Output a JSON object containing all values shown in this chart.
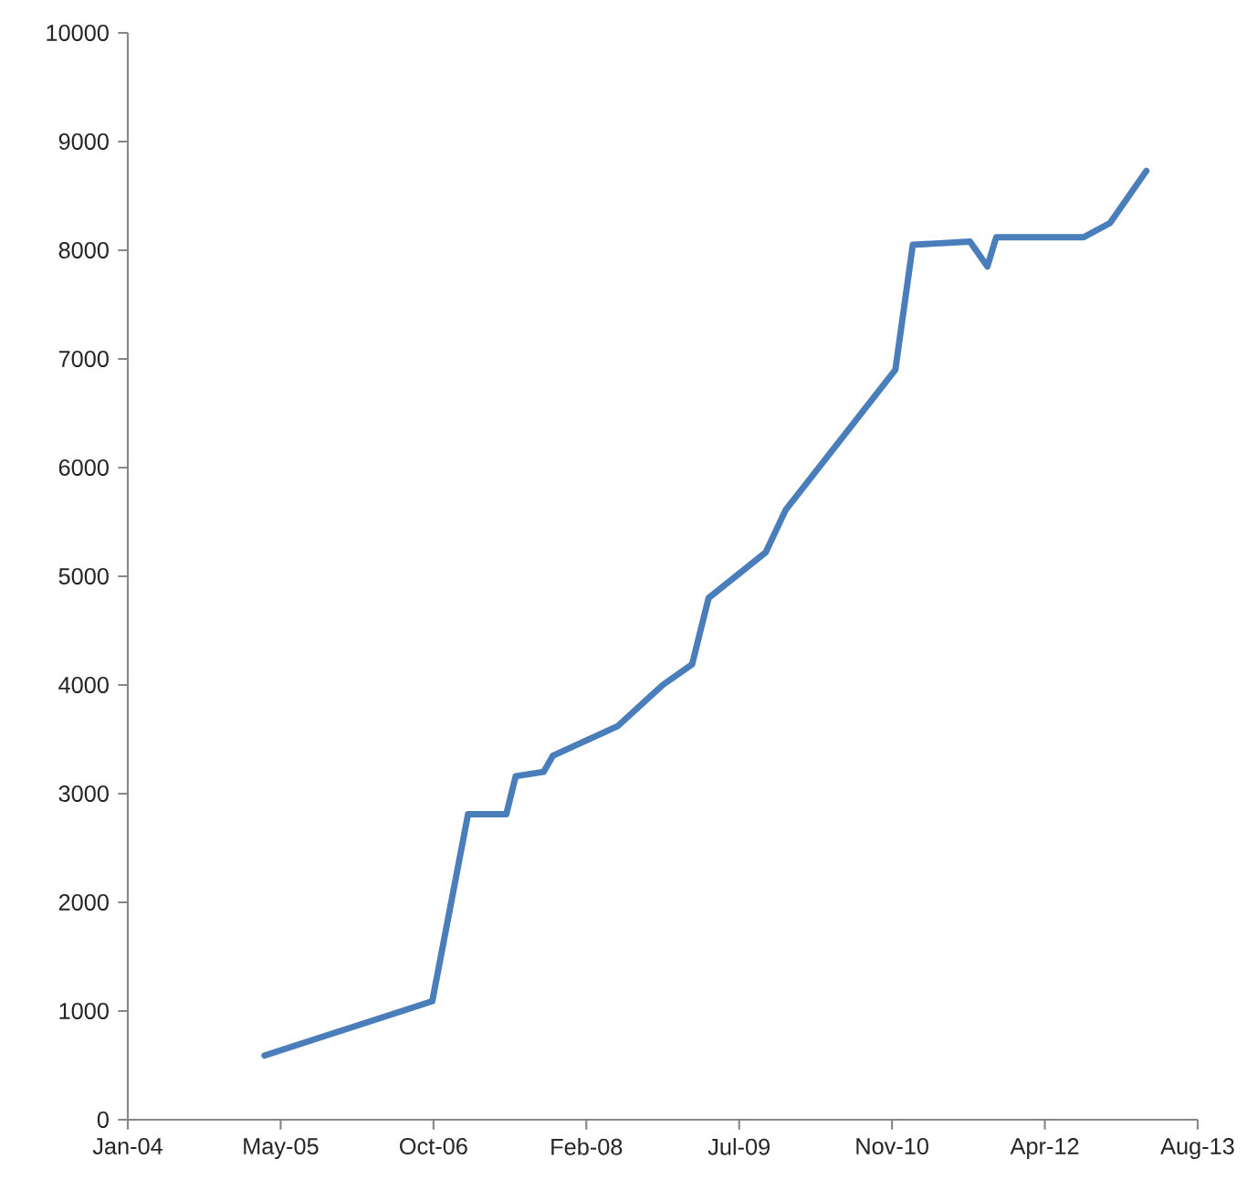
{
  "chart_data": {
    "type": "line",
    "color": "#4a7ebb",
    "line_style": "solid",
    "marker": "none",
    "grid": false,
    "x": [
      "2005-04-06",
      "2006-10-07",
      "2007-02-01",
      "2007-06-06",
      "2007-07-07",
      "2007-10-06",
      "2007-11-06",
      "2008-06-04",
      "2008-10-30",
      "2009-02-03",
      "2009-03-29",
      "2009-10-02",
      "2009-12-06",
      "2010-11-30",
      "2011-01-26",
      "2011-08-01",
      "2011-09-27",
      "2011-10-26",
      "2012-08-07",
      "2012-11-01",
      "2013-02-28"
    ],
    "values": [
      590,
      1090,
      2810,
      2810,
      3160,
      3200,
      3350,
      3620,
      4000,
      4190,
      4800,
      5220,
      5610,
      6900,
      8050,
      8080,
      7850,
      8120,
      8120,
      8250,
      8730
    ],
    "xlim": [
      "2004-01-15",
      "2013-08-15"
    ],
    "xticks": [
      {
        "value": "2004-01-15",
        "label": "Jan-04"
      },
      {
        "value": "2005-05-29",
        "label": "May-05"
      },
      {
        "value": "2006-10-11",
        "label": "Oct-06"
      },
      {
        "value": "2008-02-23",
        "label": "Feb-08"
      },
      {
        "value": "2009-07-07",
        "label": "Jul-09"
      },
      {
        "value": "2010-11-19",
        "label": "Nov-10"
      },
      {
        "value": "2012-04-02",
        "label": "Apr-12"
      },
      {
        "value": "2013-08-15",
        "label": "Aug-13"
      }
    ],
    "ylim": [
      0,
      10000
    ],
    "yticks": [
      0,
      1000,
      2000,
      3000,
      4000,
      5000,
      6000,
      7000,
      8000,
      9000,
      10000
    ]
  }
}
